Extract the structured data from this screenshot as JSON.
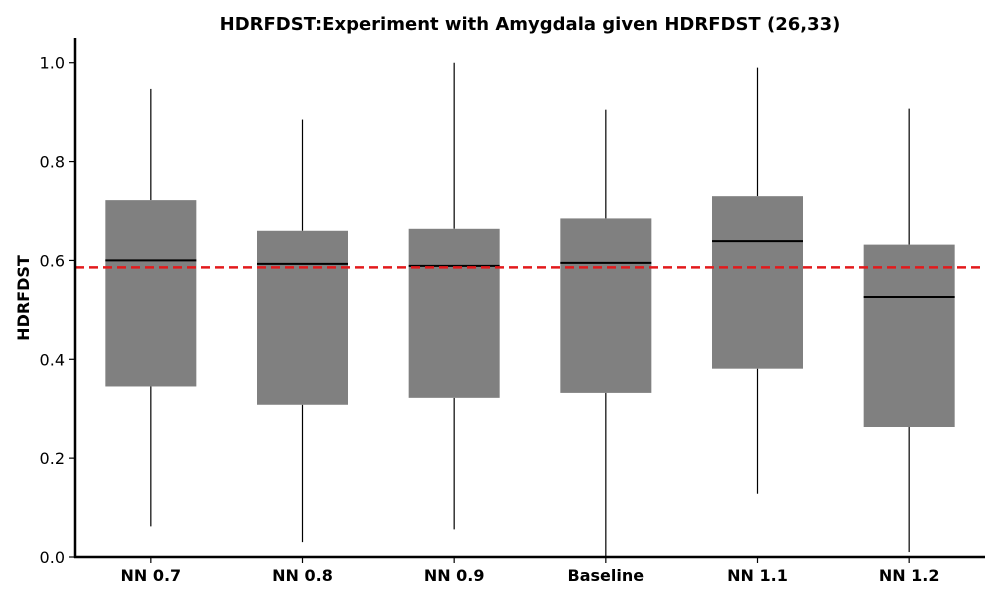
{
  "colors": {
    "box_fill": "#808080",
    "median": "#000000",
    "whisker": "#000000",
    "reference_line": "#e31a1c",
    "axis": "#000000"
  },
  "chart_data": {
    "type": "box",
    "title": "HDRFDST:Experiment with Amygdala given HDRFDST (26,33)",
    "xlabel": "",
    "ylabel": "HDRFDST",
    "ylim": [
      0.0,
      1.05
    ],
    "yticks": [
      "0.0",
      "0.2",
      "0.4",
      "0.6",
      "0.8",
      "1.0"
    ],
    "grid": false,
    "categories": [
      "NN 0.7",
      "NN 0.8",
      "NN 0.9",
      "Baseline",
      "NN 1.1",
      "NN 1.2"
    ],
    "boxes": [
      {
        "whisker_low": 0.062,
        "q1": 0.345,
        "median": 0.6,
        "q3": 0.722,
        "whisker_high": 0.947
      },
      {
        "whisker_low": 0.03,
        "q1": 0.308,
        "median": 0.593,
        "q3": 0.66,
        "whisker_high": 0.885
      },
      {
        "whisker_low": 0.056,
        "q1": 0.322,
        "median": 0.589,
        "q3": 0.664,
        "whisker_high": 1.0
      },
      {
        "whisker_low": 0.0,
        "q1": 0.332,
        "median": 0.595,
        "q3": 0.685,
        "whisker_high": 0.905
      },
      {
        "whisker_low": 0.128,
        "q1": 0.381,
        "median": 0.639,
        "q3": 0.73,
        "whisker_high": 0.99
      },
      {
        "whisker_low": 0.01,
        "q1": 0.263,
        "median": 0.526,
        "q3": 0.632,
        "whisker_high": 0.907
      }
    ],
    "reference_line": {
      "y": 0.586,
      "style": "dashed"
    }
  }
}
